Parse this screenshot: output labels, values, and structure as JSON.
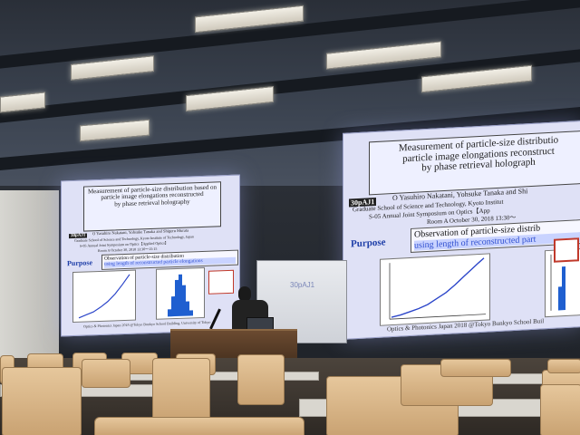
{
  "scene": {
    "colors": {
      "slide_bg": "#dfe1f6",
      "title_text": "#222222",
      "purpose_text": "#1e3ea8",
      "plot_line": "#2b45c9",
      "histogram_bar": "#1f5fd0",
      "chair": "#d9b88a"
    }
  },
  "slide_right": {
    "title_line1": "Measurement of particle-size distributio",
    "title_line2": "particle image elongations reconstruct",
    "title_line3": "by phase retrieval holograph",
    "code": "30pAJ1",
    "author": "O Yasuhiro Nakatani, Yohsuke Tanaka and Shi",
    "affiliation": "Graduate School of Science and Technology, Kyoto Institut",
    "session": "S-05   Annual Joint Symposium on Optics【App",
    "room": "Room A    October 30, 2018  13:30～",
    "purpose_label": "Purpose",
    "observation_line1": "Observation of particle-size distrib",
    "observation_line2": "using length of reconstructed part",
    "footer": "Optics & Photonics Japan 2018   @Tokyo Bunkyo School Buil"
  },
  "slide_left": {
    "title_line1": "Measurement of particle-size distribution based on",
    "title_line2": "particle image elongations reconstructed",
    "title_line3": "by phase retrieval holography",
    "code": "30pAJ1",
    "author": "O Yasuhiro Nakatani, Yohsuke Tanaka and Shigeru Murata",
    "affiliation": "Graduate School of Science and Technology, Kyoto Institute of Technology, Japan",
    "session": "S-05   Annual Joint Symposium on Optics【Applied Optics】",
    "room": "Room A   October 30, 2018  13:30～15:15",
    "purpose_label": "Purpose",
    "observation_line1": "Observation of particle-size distribution",
    "observation_line2": "using length of reconstructed particle elongations",
    "footer": "Optics & Photonics Japan 2018   @Tokyo Bunkyo School Building, University of Tokyo"
  },
  "whiteboard": {
    "text": "30pAJ1"
  }
}
